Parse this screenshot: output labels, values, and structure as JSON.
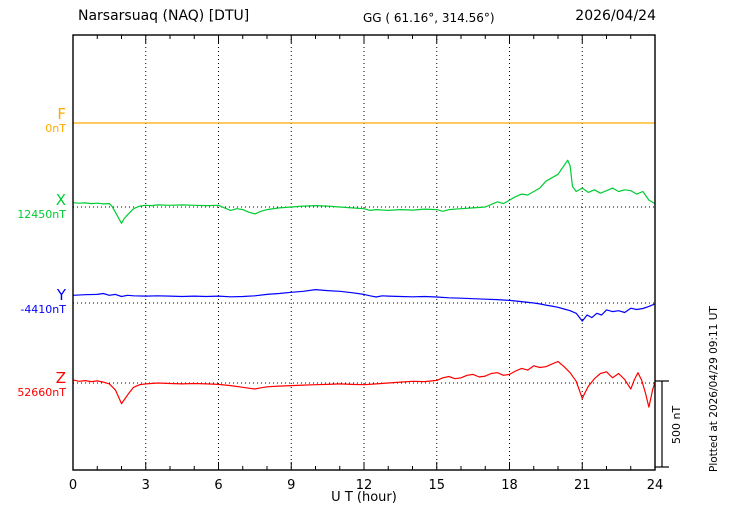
{
  "header": {
    "title": "Narsarsuaq (NAQ)  [DTU]",
    "gg": "GG ( 61.16°, 314.56°)",
    "date": "2026/04/24"
  },
  "axes": {
    "x_label": "U T (hour)"
  },
  "scale_bar": {
    "label": "500 nT"
  },
  "footer_note": "Plotted at 2026/04/29 09:11 UT",
  "chart_data": {
    "type": "line",
    "title": "Narsarsuaq (NAQ) [DTU] magnetogram 2026/04/24",
    "xlabel": "U T (hour)",
    "x_range": [
      0,
      24
    ],
    "x_major_ticks": [
      0,
      3,
      6,
      9,
      12,
      15,
      18,
      21,
      24
    ],
    "x_minor_step": 1,
    "grid": "dotted vertical at 3-hour marks; dotted horizontal at each component baseline",
    "legend_position": "left margin component labels",
    "scale_bar_nT": 500,
    "series": [
      {
        "name": "F",
        "color": "#ffaa00",
        "baseline_label": "0nT",
        "baseline_value": 0,
        "points": [
          [
            0,
            0
          ],
          [
            24,
            0
          ]
        ]
      },
      {
        "name": "X",
        "color": "#00cc33",
        "baseline_label": "12450nT",
        "baseline_value": 12450,
        "points": [
          [
            0,
            25
          ],
          [
            0.25,
            22
          ],
          [
            0.5,
            24
          ],
          [
            0.75,
            20
          ],
          [
            1,
            22
          ],
          [
            1.25,
            18
          ],
          [
            1.5,
            20
          ],
          [
            1.6,
            5
          ],
          [
            1.75,
            -30
          ],
          [
            2,
            -95
          ],
          [
            2.1,
            -70
          ],
          [
            2.25,
            -45
          ],
          [
            2.5,
            -10
          ],
          [
            2.75,
            5
          ],
          [
            3,
            10
          ],
          [
            3.25,
            8
          ],
          [
            3.5,
            12
          ],
          [
            4,
            10
          ],
          [
            4.5,
            12
          ],
          [
            5,
            10
          ],
          [
            5.5,
            8
          ],
          [
            6,
            10
          ],
          [
            6.25,
            -5
          ],
          [
            6.5,
            -20
          ],
          [
            6.75,
            -10
          ],
          [
            7,
            -15
          ],
          [
            7.25,
            -30
          ],
          [
            7.5,
            -40
          ],
          [
            7.75,
            -25
          ],
          [
            8,
            -15
          ],
          [
            8.5,
            -5
          ],
          [
            9,
            0
          ],
          [
            9.5,
            5
          ],
          [
            10,
            8
          ],
          [
            10.5,
            5
          ],
          [
            11,
            0
          ],
          [
            11.5,
            -5
          ],
          [
            12,
            -10
          ],
          [
            12.25,
            -20
          ],
          [
            12.5,
            -15
          ],
          [
            13,
            -20
          ],
          [
            13.5,
            -15
          ],
          [
            14,
            -18
          ],
          [
            14.5,
            -12
          ],
          [
            15,
            -15
          ],
          [
            15.25,
            -25
          ],
          [
            15.5,
            -15
          ],
          [
            16,
            -10
          ],
          [
            16.5,
            -5
          ],
          [
            17,
            0
          ],
          [
            17.25,
            15
          ],
          [
            17.5,
            30
          ],
          [
            17.75,
            20
          ],
          [
            18,
            40
          ],
          [
            18.25,
            60
          ],
          [
            18.5,
            75
          ],
          [
            18.75,
            70
          ],
          [
            19,
            90
          ],
          [
            19.25,
            110
          ],
          [
            19.5,
            150
          ],
          [
            19.75,
            170
          ],
          [
            20,
            190
          ],
          [
            20.2,
            230
          ],
          [
            20.4,
            272
          ],
          [
            20.5,
            240
          ],
          [
            20.6,
            120
          ],
          [
            20.75,
            90
          ],
          [
            21,
            110
          ],
          [
            21.25,
            85
          ],
          [
            21.5,
            100
          ],
          [
            21.75,
            80
          ],
          [
            22,
            95
          ],
          [
            22.25,
            110
          ],
          [
            22.5,
            90
          ],
          [
            22.75,
            100
          ],
          [
            23,
            95
          ],
          [
            23.25,
            75
          ],
          [
            23.5,
            90
          ],
          [
            23.75,
            40
          ],
          [
            24,
            20
          ]
        ]
      },
      {
        "name": "Y",
        "color": "#0000ff",
        "baseline_label": "-4410nT",
        "baseline_value": -4410,
        "points": [
          [
            0,
            45
          ],
          [
            0.5,
            48
          ],
          [
            1,
            50
          ],
          [
            1.25,
            55
          ],
          [
            1.5,
            45
          ],
          [
            1.75,
            50
          ],
          [
            2,
            38
          ],
          [
            2.25,
            45
          ],
          [
            2.5,
            42
          ],
          [
            3,
            40
          ],
          [
            3.5,
            42
          ],
          [
            4,
            40
          ],
          [
            4.5,
            38
          ],
          [
            5,
            40
          ],
          [
            5.5,
            38
          ],
          [
            6,
            40
          ],
          [
            6.5,
            36
          ],
          [
            7,
            38
          ],
          [
            7.5,
            42
          ],
          [
            8,
            50
          ],
          [
            8.5,
            55
          ],
          [
            9,
            62
          ],
          [
            9.5,
            68
          ],
          [
            10,
            78
          ],
          [
            10.5,
            72
          ],
          [
            11,
            68
          ],
          [
            11.5,
            60
          ],
          [
            12,
            50
          ],
          [
            12.25,
            42
          ],
          [
            12.5,
            35
          ],
          [
            12.75,
            42
          ],
          [
            13,
            40
          ],
          [
            13.5,
            38
          ],
          [
            14,
            36
          ],
          [
            14.5,
            38
          ],
          [
            15,
            35
          ],
          [
            15.5,
            30
          ],
          [
            16,
            28
          ],
          [
            16.5,
            25
          ],
          [
            17,
            22
          ],
          [
            17.5,
            20
          ],
          [
            18,
            15
          ],
          [
            18.5,
            8
          ],
          [
            19,
            0
          ],
          [
            19.25,
            -5
          ],
          [
            19.5,
            -12
          ],
          [
            19.75,
            -18
          ],
          [
            20,
            -25
          ],
          [
            20.25,
            -35
          ],
          [
            20.5,
            -45
          ],
          [
            20.75,
            -60
          ],
          [
            21,
            -105
          ],
          [
            21.2,
            -70
          ],
          [
            21.4,
            -85
          ],
          [
            21.6,
            -60
          ],
          [
            21.8,
            -70
          ],
          [
            22,
            -40
          ],
          [
            22.25,
            -50
          ],
          [
            22.5,
            -45
          ],
          [
            22.75,
            -55
          ],
          [
            23,
            -30
          ],
          [
            23.25,
            -38
          ],
          [
            23.5,
            -32
          ],
          [
            23.75,
            -20
          ],
          [
            24,
            -5
          ]
        ]
      },
      {
        "name": "Z",
        "color": "#ff0000",
        "baseline_label": "52660nT",
        "baseline_value": 52660,
        "points": [
          [
            0,
            18
          ],
          [
            0.25,
            10
          ],
          [
            0.5,
            14
          ],
          [
            0.75,
            8
          ],
          [
            1,
            12
          ],
          [
            1.25,
            5
          ],
          [
            1.5,
            -5
          ],
          [
            1.75,
            -40
          ],
          [
            2,
            -120
          ],
          [
            2.15,
            -90
          ],
          [
            2.3,
            -60
          ],
          [
            2.5,
            -25
          ],
          [
            2.75,
            -10
          ],
          [
            3,
            -5
          ],
          [
            3.5,
            0
          ],
          [
            4,
            -3
          ],
          [
            4.5,
            -5
          ],
          [
            5,
            -3
          ],
          [
            5.5,
            -5
          ],
          [
            6,
            -8
          ],
          [
            6.5,
            -15
          ],
          [
            7,
            -25
          ],
          [
            7.25,
            -30
          ],
          [
            7.5,
            -35
          ],
          [
            7.75,
            -28
          ],
          [
            8,
            -22
          ],
          [
            8.5,
            -18
          ],
          [
            9,
            -15
          ],
          [
            9.5,
            -12
          ],
          [
            10,
            -10
          ],
          [
            10.5,
            -8
          ],
          [
            11,
            -5
          ],
          [
            11.5,
            -8
          ],
          [
            12,
            -10
          ],
          [
            12.5,
            -5
          ],
          [
            13,
            0
          ],
          [
            13.5,
            5
          ],
          [
            14,
            10
          ],
          [
            14.5,
            8
          ],
          [
            15,
            15
          ],
          [
            15.25,
            30
          ],
          [
            15.5,
            38
          ],
          [
            15.75,
            25
          ],
          [
            16,
            30
          ],
          [
            16.25,
            45
          ],
          [
            16.5,
            50
          ],
          [
            16.75,
            35
          ],
          [
            17,
            40
          ],
          [
            17.25,
            55
          ],
          [
            17.5,
            60
          ],
          [
            17.75,
            45
          ],
          [
            18,
            50
          ],
          [
            18.25,
            70
          ],
          [
            18.5,
            85
          ],
          [
            18.75,
            75
          ],
          [
            19,
            100
          ],
          [
            19.25,
            90
          ],
          [
            19.5,
            95
          ],
          [
            19.75,
            110
          ],
          [
            20,
            125
          ],
          [
            20.25,
            95
          ],
          [
            20.5,
            60
          ],
          [
            20.75,
            10
          ],
          [
            21,
            -90
          ],
          [
            21.1,
            -60
          ],
          [
            21.25,
            -20
          ],
          [
            21.5,
            25
          ],
          [
            21.75,
            55
          ],
          [
            22,
            65
          ],
          [
            22.25,
            30
          ],
          [
            22.5,
            55
          ],
          [
            22.75,
            20
          ],
          [
            23,
            -35
          ],
          [
            23.15,
            20
          ],
          [
            23.3,
            60
          ],
          [
            23.45,
            15
          ],
          [
            23.6,
            -55
          ],
          [
            23.75,
            -140
          ],
          [
            23.9,
            -40
          ],
          [
            24,
            5
          ]
        ]
      }
    ]
  }
}
